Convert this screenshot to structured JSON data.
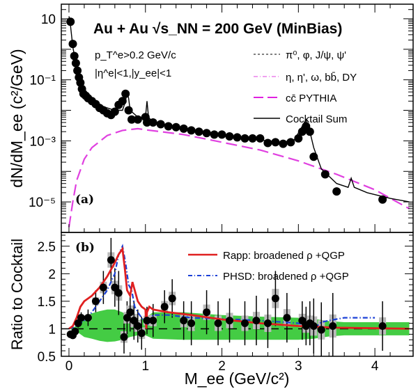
{
  "chart_data": [
    {
      "panel": "(a)",
      "type": "scatter",
      "title": "Au + Au √s_NN = 200 GeV (MinBias)",
      "ylabel": "dN/dM_ee (c²/GeV)",
      "ylim": [
        1e-06,
        30
      ],
      "yscale": "log",
      "xlim": [
        -0.1,
        4.5
      ],
      "y_tick_labels": [
        "10",
        "10⁻¹",
        "10⁻³",
        "10⁻⁵"
      ],
      "annotations": [
        "p_T^e>0.2 GeV/c",
        "|η^e|<1,|y_ee|<1"
      ],
      "legend": [
        {
          "label": "π⁰, φ, J/ψ, ψ'",
          "style": "dashed",
          "color": "#000000"
        },
        {
          "label": "η, η', ω, bb̄, DY",
          "style": "dashdot",
          "color": "#e040e0"
        },
        {
          "label": "cc̄ PYTHIA",
          "style": "longdash",
          "color": "#e020e0"
        },
        {
          "label": "Cocktail Sum",
          "style": "solid",
          "color": "#000000"
        }
      ],
      "series": [
        {
          "name": "Data",
          "x": [
            0.02,
            0.05,
            0.07,
            0.09,
            0.11,
            0.13,
            0.15,
            0.17,
            0.19,
            0.22,
            0.25,
            0.3,
            0.35,
            0.4,
            0.45,
            0.5,
            0.55,
            0.6,
            0.65,
            0.7,
            0.74,
            0.78,
            0.82,
            0.9,
            1.0,
            1.02,
            1.1,
            1.2,
            1.3,
            1.4,
            1.5,
            1.6,
            1.7,
            1.8,
            1.9,
            2.0,
            2.1,
            2.2,
            2.3,
            2.4,
            2.5,
            2.6,
            2.7,
            2.8,
            2.9,
            3.0,
            3.05,
            3.1,
            3.15,
            3.2,
            3.35,
            3.5,
            4.1
          ],
          "y": [
            8,
            1.5,
            0.6,
            0.35,
            0.2,
            0.12,
            0.08,
            0.05,
            0.035,
            0.03,
            0.025,
            0.02,
            0.016,
            0.012,
            0.01,
            0.008,
            0.007,
            0.009,
            0.015,
            0.02,
            0.035,
            0.01,
            0.005,
            0.005,
            0.006,
            0.004,
            0.004,
            0.0035,
            0.003,
            0.0028,
            0.0025,
            0.0022,
            0.002,
            0.0018,
            0.0016,
            0.0016,
            0.0014,
            0.0013,
            0.0012,
            0.0012,
            0.0012,
            0.00085,
            0.0009,
            0.0008,
            0.0009,
            0.0012,
            0.002,
            0.003,
            0.002,
            0.0003,
            8e-05,
            2.2e-05,
            1.2e-05
          ]
        },
        {
          "name": "Cocktail Sum",
          "x": [
            0.0,
            0.02,
            0.05,
            0.1,
            0.15,
            0.2,
            0.3,
            0.4,
            0.5,
            0.6,
            0.7,
            0.74,
            0.76,
            0.78,
            0.8,
            0.9,
            1.0,
            1.02,
            1.04,
            1.1,
            1.3,
            1.5,
            1.8,
            2.0,
            2.3,
            2.6,
            2.8,
            2.95,
            3.05,
            3.1,
            3.15,
            3.2,
            3.3,
            3.5,
            3.65,
            3.69,
            3.73,
            3.9,
            4.2,
            4.45
          ],
          "y": [
            12,
            6,
            1.2,
            0.25,
            0.07,
            0.035,
            0.02,
            0.015,
            0.012,
            0.01,
            0.01,
            0.02,
            0.04,
            0.025,
            0.01,
            0.006,
            0.006,
            0.02,
            0.006,
            0.004,
            0.003,
            0.0025,
            0.002,
            0.0016,
            0.0012,
            0.001,
            0.0009,
            0.0011,
            0.003,
            0.005,
            0.002,
            0.0006,
            0.00012,
            4e-05,
            3e-05,
            6e-05,
            3e-05,
            2e-05,
            1.3e-05,
            1e-05
          ]
        },
        {
          "name": "cc̄ PYTHIA",
          "x": [
            0.0,
            0.05,
            0.1,
            0.2,
            0.3,
            0.5,
            0.7,
            0.9,
            1.0,
            1.2,
            1.5,
            2.0,
            2.5,
            3.0,
            3.5,
            4.0,
            4.45
          ],
          "y": [
            1.5e-06,
            1e-05,
            5e-05,
            0.00025,
            0.0006,
            0.0015,
            0.0022,
            0.0025,
            0.0023,
            0.002,
            0.0016,
            0.0009,
            0.0005,
            0.00022,
            8e-05,
            2.5e-05,
            6e-06
          ]
        }
      ]
    },
    {
      "panel": "(b)",
      "type": "line",
      "ylabel": "Ratio to Cocktail",
      "xlabel": "M_ee (GeV/c²)",
      "xlim": [
        -0.1,
        4.5
      ],
      "ylim": [
        0.5,
        2.75
      ],
      "x_tick_labels": [
        "0",
        "1",
        "2",
        "3",
        "4"
      ],
      "y_tick_labels": [
        "0.5",
        "1",
        "1.5",
        "2",
        "2.5"
      ],
      "legend": [
        {
          "label": "Rapp: broadened ρ +QGP",
          "color": "#e02020"
        },
        {
          "label": "PHSD: broadened ρ +QGP",
          "color": "#1a3fd6"
        }
      ],
      "series": [
        {
          "name": "Data",
          "x": [
            0.02,
            0.05,
            0.08,
            0.12,
            0.16,
            0.25,
            0.35,
            0.45,
            0.55,
            0.6,
            0.65,
            0.72,
            0.76,
            0.8,
            0.85,
            0.9,
            0.95,
            1.02,
            1.1,
            1.25,
            1.35,
            1.5,
            1.6,
            1.8,
            1.95,
            2.1,
            2.3,
            2.45,
            2.6,
            2.7,
            2.85,
            3.05,
            3.1,
            3.15,
            3.2,
            3.3,
            3.45,
            4.1
          ],
          "y": [
            0.9,
            0.88,
            0.95,
            1.1,
            1.2,
            1.2,
            1.5,
            1.75,
            2.25,
            1.75,
            1.65,
            0.85,
            1.2,
            1.3,
            1.15,
            1.05,
            0.92,
            1.15,
            1.15,
            1.4,
            1.55,
            1.15,
            1.1,
            1.3,
            1.1,
            1.15,
            1.1,
            1.15,
            1.1,
            1.55,
            1.2,
            1.15,
            1.05,
            1.1,
            1.05,
            0.98,
            1.05,
            1.05
          ],
          "err": [
            0.05,
            0.05,
            0.06,
            0.08,
            0.1,
            0.15,
            0.2,
            0.3,
            0.4,
            0.35,
            0.4,
            0.3,
            0.3,
            0.35,
            0.35,
            0.3,
            0.3,
            0.25,
            0.3,
            0.3,
            0.35,
            0.35,
            0.4,
            0.4,
            0.4,
            0.4,
            0.4,
            0.45,
            0.45,
            0.5,
            0.45,
            0.35,
            0.35,
            0.4,
            0.5,
            0.5,
            0.6,
            0.45
          ]
        },
        {
          "name": "Rapp: broadened ρ +QGP",
          "x": [
            0.0,
            0.05,
            0.1,
            0.15,
            0.2,
            0.3,
            0.4,
            0.5,
            0.6,
            0.65,
            0.7,
            0.73,
            0.76,
            0.8,
            0.83,
            0.86,
            0.9,
            0.95,
            1.0,
            1.01,
            1.02,
            1.05,
            1.1,
            1.3,
            1.6,
            2.0,
            2.5,
            3.0,
            3.5,
            4.0,
            4.45
          ],
          "y": [
            1.0,
            1.05,
            1.2,
            1.4,
            1.5,
            1.6,
            1.75,
            1.95,
            2.2,
            2.35,
            2.45,
            2.1,
            1.7,
            1.6,
            1.85,
            1.7,
            1.5,
            1.4,
            1.35,
            1.0,
            1.3,
            1.4,
            1.35,
            1.3,
            1.25,
            1.17,
            1.1,
            1.05,
            1.02,
            1.01,
            1.0
          ]
        },
        {
          "name": "PHSD: broadened ρ +QGP",
          "x": [
            0.0,
            0.1,
            0.2,
            0.3,
            0.4,
            0.5,
            0.6,
            0.65,
            0.7,
            0.74,
            0.78,
            0.82,
            0.86,
            0.9,
            0.95,
            1.0,
            1.02,
            1.05,
            1.1,
            1.3,
            1.6,
            2.0,
            2.5,
            3.0,
            3.1,
            3.2,
            3.3,
            3.4,
            3.6,
            3.8,
            4.0
          ],
          "y": [
            1.0,
            1.05,
            1.15,
            1.3,
            1.5,
            1.7,
            2.0,
            2.35,
            2.5,
            2.2,
            1.8,
            1.7,
            1.4,
            1.3,
            1.2,
            1.1,
            1.05,
            1.15,
            1.25,
            1.25,
            1.2,
            1.18,
            1.15,
            1.1,
            1.05,
            1.0,
            1.12,
            1.15,
            1.2,
            1.2,
            1.2
          ]
        },
        {
          "name": "Cocktail systematic band",
          "x": [
            0.0,
            0.1,
            0.2,
            0.3,
            0.4,
            0.5,
            0.6,
            0.7,
            0.8,
            0.9,
            1.0,
            1.1,
            1.5,
            2.0,
            2.5,
            3.0,
            3.2,
            3.4,
            3.6,
            4.0,
            4.45
          ],
          "low": [
            1.0,
            0.95,
            0.85,
            0.82,
            0.78,
            0.76,
            0.77,
            0.8,
            0.85,
            0.88,
            0.88,
            0.82,
            0.8,
            0.8,
            0.8,
            0.8,
            0.82,
            0.86,
            0.88,
            0.88,
            0.88
          ],
          "high": [
            1.0,
            1.05,
            1.22,
            1.28,
            1.32,
            1.35,
            1.35,
            1.3,
            1.2,
            1.15,
            1.2,
            1.3,
            1.3,
            1.25,
            1.22,
            1.2,
            1.18,
            1.14,
            1.12,
            1.12,
            1.12
          ]
        }
      ],
      "reference_line": 1
    }
  ],
  "colors": {
    "band": "#44cc44",
    "rapp": "#e02020",
    "phsd": "#1a3fd6",
    "magenta": "#e040e0"
  }
}
